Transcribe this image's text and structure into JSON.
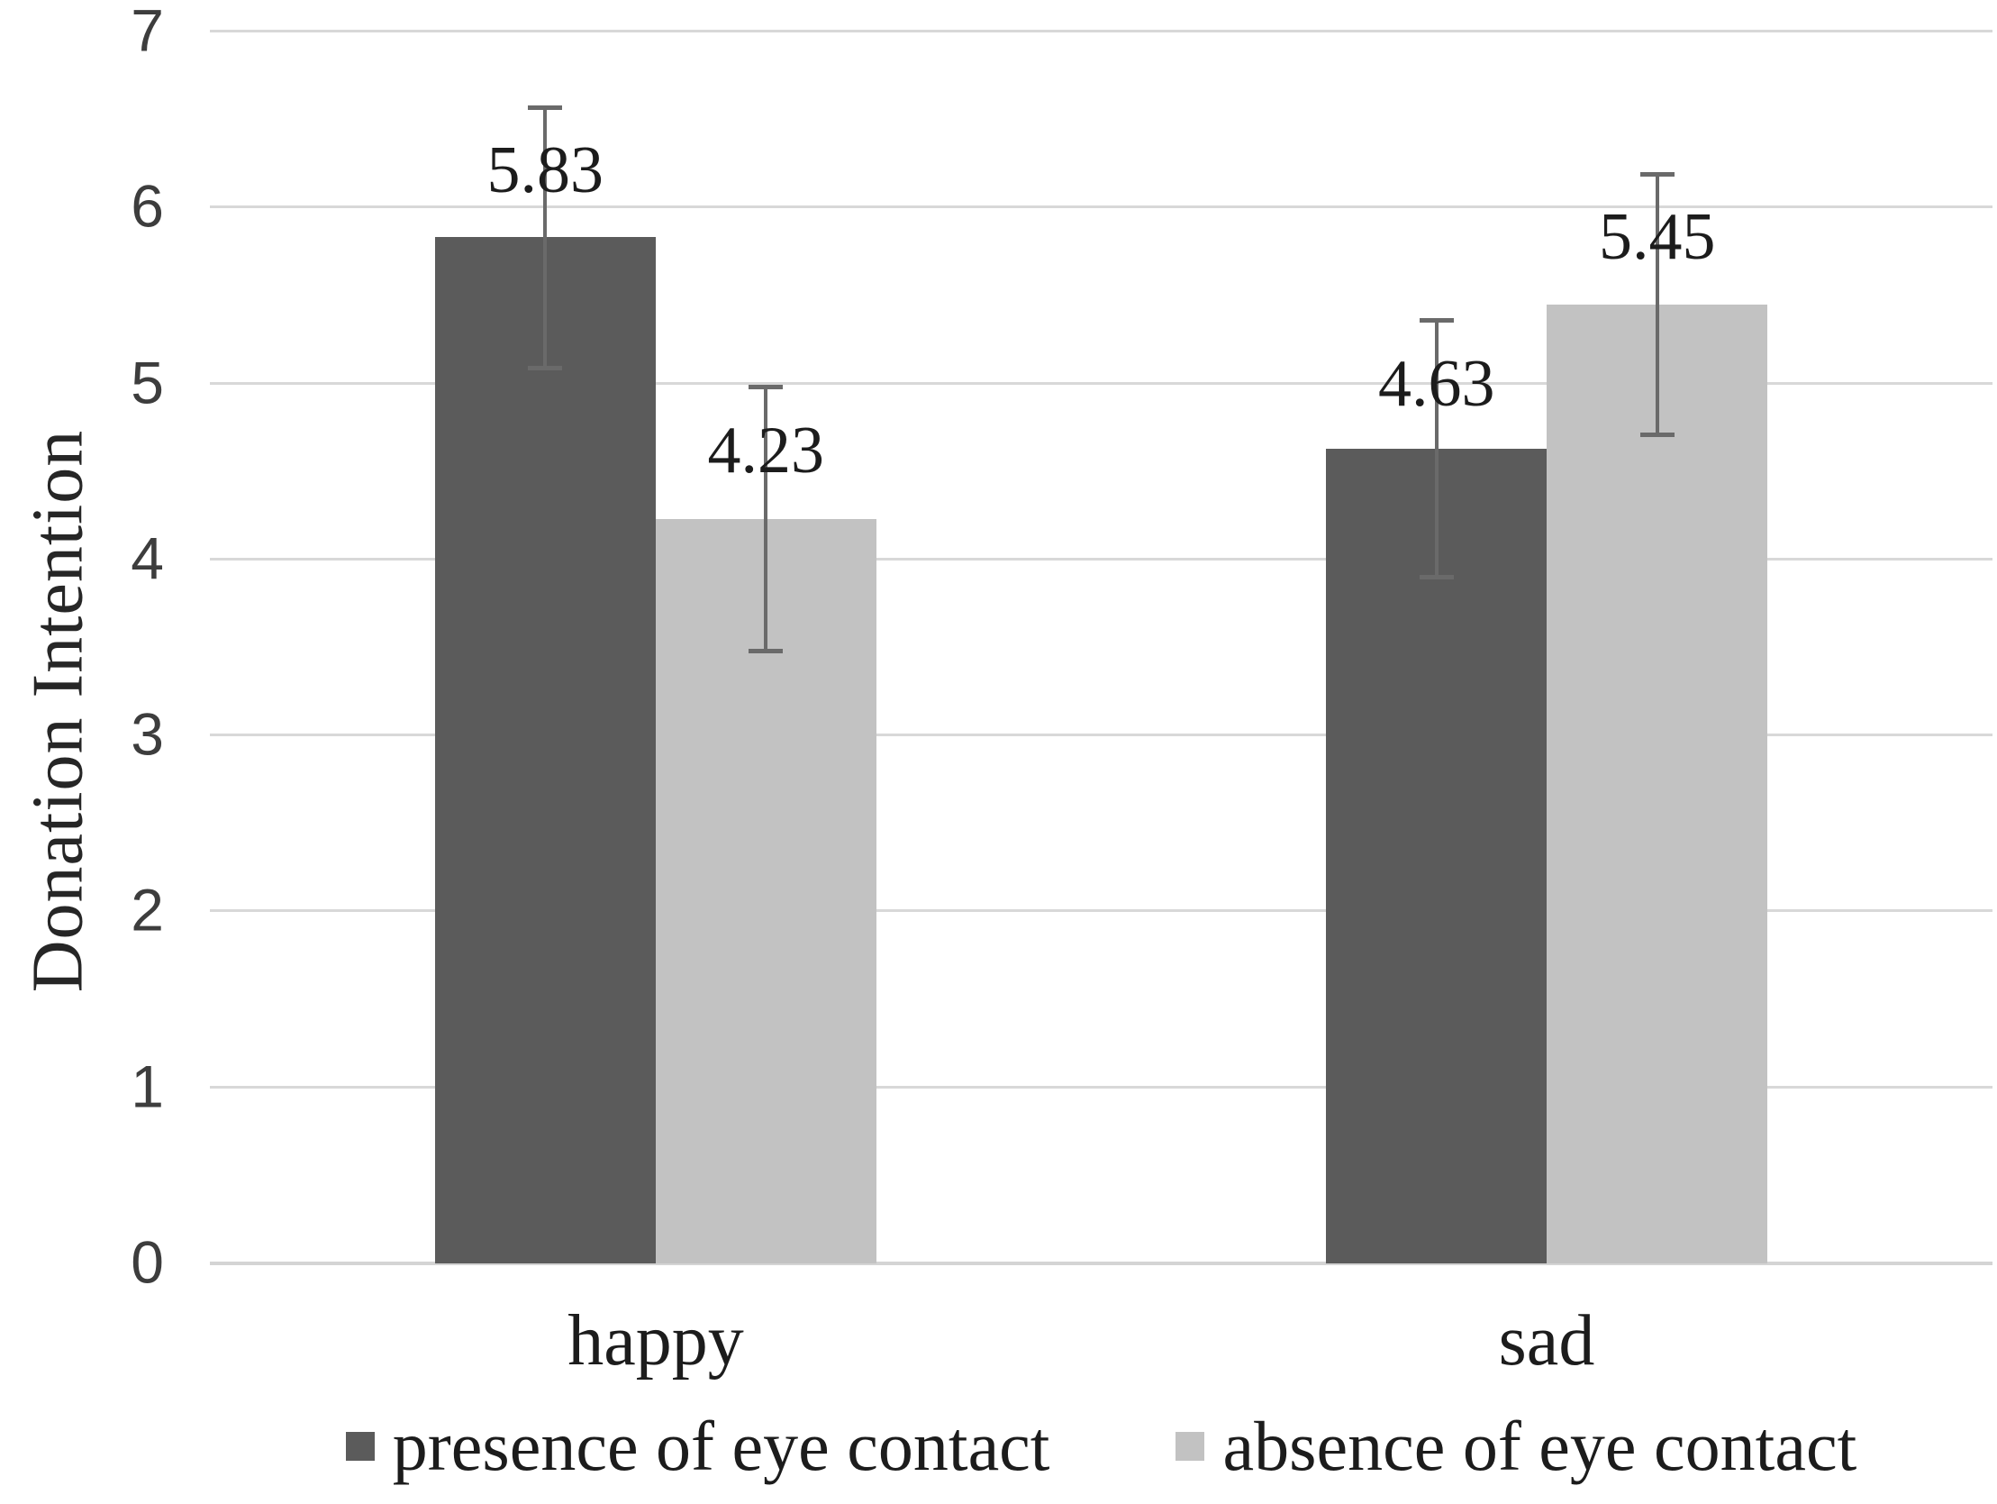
{
  "chart_data": {
    "type": "bar",
    "title": "",
    "xlabel": "",
    "ylabel": "Donation Intention",
    "categories": [
      "happy",
      "sad"
    ],
    "series": [
      {
        "name": "presence of eye contact",
        "color": "#5b5b5b",
        "values": [
          5.83,
          4.63
        ],
        "errors": [
          0.74,
          0.73
        ]
      },
      {
        "name": "absence of eye contact",
        "color": "#c2c2c2",
        "values": [
          4.23,
          5.45
        ],
        "errors": [
          0.75,
          0.74
        ]
      }
    ],
    "data_labels": [
      [
        "5.83",
        "4.63"
      ],
      [
        "4.23",
        "5.45"
      ]
    ],
    "ylim": [
      0,
      7
    ],
    "yticks": [
      0,
      1,
      2,
      3,
      4,
      5,
      6,
      7
    ],
    "grid": true,
    "error_bars": true,
    "legend_position": "bottom",
    "colors": {
      "gridline": "#d8d8d8",
      "axis_line": "#d4d4d4",
      "error_bar": "#6a6a6a",
      "tick_label": "#3d3d3d",
      "text": "#1c1c1c",
      "background": "#ffffff"
    }
  }
}
